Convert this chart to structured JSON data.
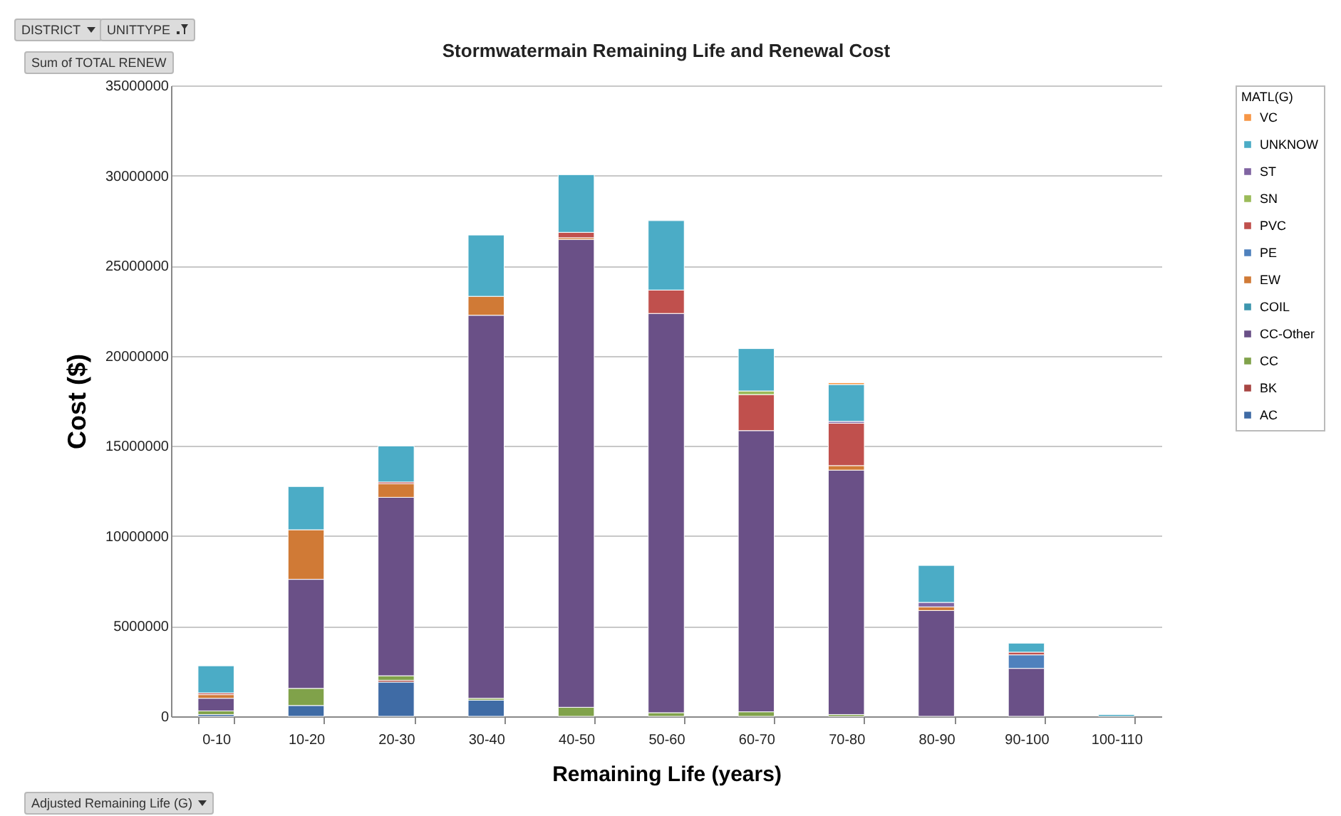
{
  "chart_data": {
    "type": "bar",
    "stacked": true,
    "title": "Stormwatermain Remaining  Life and Renewal Cost",
    "xlabel": "Remaining Life (years)",
    "ylabel": "Cost ($)",
    "legend_title": "MATL(G)",
    "legend": "right",
    "grid": "y",
    "annotations": [
      "DISTRICT",
      "UNITTYPE",
      "Sum of TOTAL RENEW",
      "Adjusted Remaining Life (G)"
    ],
    "categories": [
      "0-10",
      "10-20",
      "20-30",
      "30-40",
      "40-50",
      "50-60",
      "60-70",
      "70-80",
      "80-90",
      "90-100",
      "100-110"
    ],
    "ylim": [
      0,
      35000000
    ],
    "yticks": [
      0,
      5000000,
      10000000,
      15000000,
      20000000,
      25000000,
      30000000,
      35000000
    ],
    "series": [
      {
        "name": "AC",
        "color": "#3f6ba5",
        "values": [
          100000,
          600000,
          1900000,
          900000,
          null,
          null,
          null,
          null,
          null,
          null,
          null
        ]
      },
      {
        "name": "BK",
        "color": "#a84643",
        "values": [
          null,
          null,
          100000,
          null,
          null,
          null,
          null,
          null,
          null,
          null,
          null
        ]
      },
      {
        "name": "CC",
        "color": "#80a24a",
        "values": [
          200000,
          950000,
          250000,
          100000,
          500000,
          200000,
          250000,
          100000,
          null,
          null,
          null
        ]
      },
      {
        "name": "CC-Other",
        "color": "#6a5087",
        "values": [
          700000,
          6050000,
          9900000,
          21250000,
          25950000,
          22150000,
          15600000,
          13560000,
          5870000,
          2660000,
          null
        ]
      },
      {
        "name": "COIL",
        "color": "#3d96ae",
        "values": [
          null,
          null,
          null,
          null,
          null,
          null,
          null,
          null,
          null,
          null,
          null
        ]
      },
      {
        "name": "EW",
        "color": "#d07a36",
        "values": [
          200000,
          2750000,
          750000,
          1050000,
          100000,
          null,
          null,
          250000,
          200000,
          null,
          null
        ]
      },
      {
        "name": "PE",
        "color": "#4f81bd",
        "values": [
          null,
          null,
          null,
          null,
          null,
          null,
          null,
          null,
          null,
          750000,
          null
        ]
      },
      {
        "name": "PVC",
        "color": "#c0504d",
        "values": [
          100000,
          null,
          100000,
          null,
          300000,
          1300000,
          2000000,
          2350000,
          null,
          150000,
          null
        ]
      },
      {
        "name": "SN",
        "color": "#9bbb59",
        "values": [
          null,
          null,
          null,
          null,
          null,
          null,
          200000,
          null,
          null,
          null,
          null
        ]
      },
      {
        "name": "ST",
        "color": "#8064a2",
        "values": [
          null,
          null,
          null,
          null,
          null,
          null,
          null,
          100000,
          250000,
          null,
          null
        ]
      },
      {
        "name": "UNKNOW",
        "color": "#4bacc6",
        "values": [
          1500000,
          2400000,
          2000000,
          3400000,
          3200000,
          3850000,
          2350000,
          2050000,
          2050000,
          500000,
          100000
        ]
      },
      {
        "name": "VC",
        "color": "#f79646",
        "values": [
          null,
          null,
          null,
          null,
          null,
          null,
          null,
          100000,
          null,
          null,
          null
        ]
      }
    ]
  }
}
